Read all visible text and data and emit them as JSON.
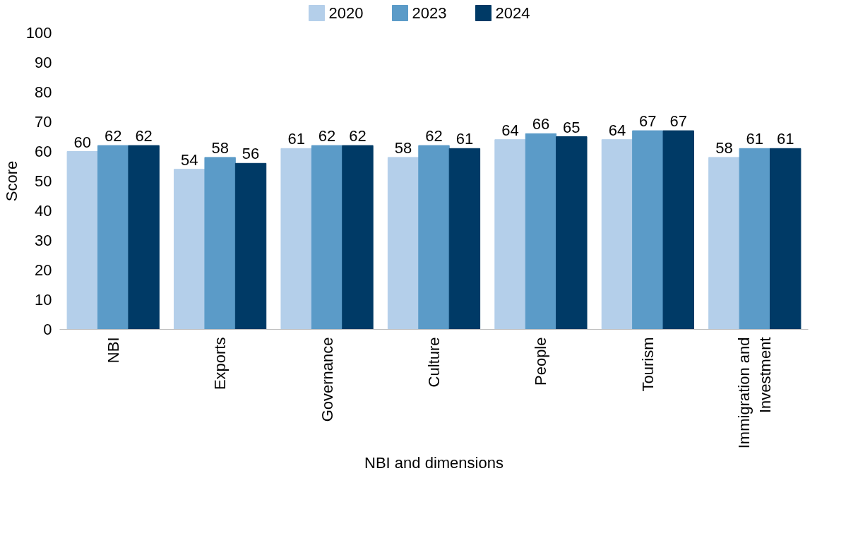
{
  "chart_data": {
    "type": "bar",
    "xlabel": "NBI and dimensions",
    "ylabel": "Score",
    "categories": [
      "NBI",
      "Exports",
      "Governance",
      "Culture",
      "People",
      "Tourism",
      "Immigration and Investment"
    ],
    "series": [
      {
        "name": "2020",
        "color": "#b4cfea",
        "values": [
          60,
          54,
          61,
          58,
          64,
          64,
          58
        ]
      },
      {
        "name": "2023",
        "color": "#5b9bc8",
        "values": [
          62,
          58,
          62,
          62,
          66,
          67,
          61
        ]
      },
      {
        "name": "2024",
        "color": "#003a66",
        "values": [
          62,
          56,
          62,
          61,
          65,
          67,
          61
        ]
      }
    ],
    "ylim": [
      0,
      100
    ],
    "yticks": [
      0,
      10,
      20,
      30,
      40,
      50,
      60,
      70,
      80,
      90,
      100
    ],
    "grid": false,
    "legend": "top",
    "data_labels": true
  }
}
